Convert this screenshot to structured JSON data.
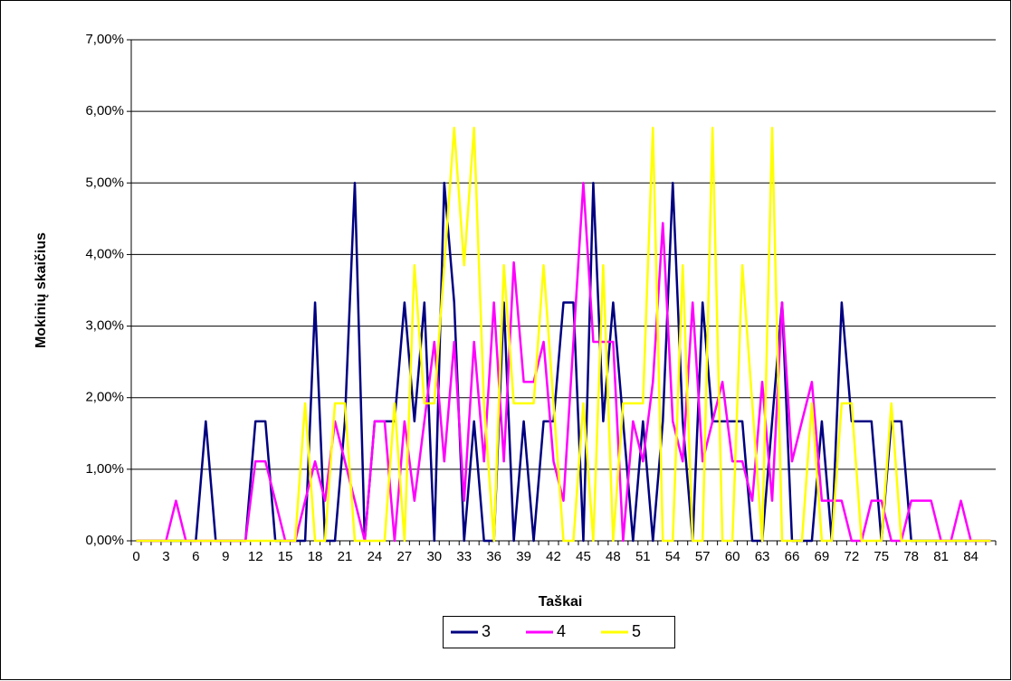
{
  "chart_data": {
    "type": "line",
    "x_label": "Taškai",
    "y_label": "Mokinių skaičius",
    "categories": [
      "0",
      null,
      null,
      "3",
      null,
      null,
      "6",
      null,
      null,
      "9",
      null,
      null,
      "12",
      null,
      null,
      "15",
      null,
      null,
      "18",
      null,
      null,
      "21",
      null,
      null,
      "24",
      null,
      null,
      "27",
      null,
      null,
      "30",
      null,
      null,
      "33",
      null,
      null,
      "36",
      null,
      null,
      "39",
      null,
      null,
      "42",
      null,
      null,
      "45",
      null,
      null,
      "48",
      null,
      null,
      "51",
      null,
      null,
      "54",
      null,
      null,
      "57",
      null,
      null,
      "60",
      null,
      null,
      "63",
      null,
      null,
      "66",
      null,
      null,
      "69",
      null,
      null,
      "72",
      null,
      null,
      "75",
      null,
      null,
      "78",
      null,
      null,
      "81",
      null,
      null,
      "84",
      null,
      null
    ],
    "series": [
      {
        "name": "3",
        "color": "#000080",
        "values": [
          0,
          0,
          0,
          0,
          0,
          0,
          0,
          1.67,
          0,
          0,
          0,
          0,
          1.67,
          1.67,
          0,
          0,
          0,
          0,
          3.33,
          0,
          0,
          1.67,
          5.0,
          0,
          1.67,
          1.67,
          1.67,
          3.33,
          1.67,
          3.33,
          0,
          5.0,
          3.33,
          0,
          1.67,
          0,
          0,
          3.33,
          0,
          1.67,
          0,
          1.67,
          1.67,
          3.33,
          3.33,
          0,
          5.0,
          1.67,
          3.33,
          1.67,
          0,
          1.67,
          0,
          1.67,
          5.0,
          1.67,
          0,
          3.33,
          1.67,
          1.67,
          1.67,
          1.67,
          0,
          0,
          1.67,
          3.33,
          0,
          0,
          0,
          1.67,
          0,
          3.33,
          1.67,
          1.67,
          1.67,
          0,
          1.67,
          1.67,
          0,
          0,
          0,
          0,
          0,
          0,
          0,
          0,
          0
        ]
      },
      {
        "name": "4",
        "color": "#ff00ff",
        "values": [
          0,
          0,
          0,
          0,
          0.56,
          0,
          0,
          0,
          0,
          0,
          0,
          0,
          1.11,
          1.11,
          0.56,
          0,
          0,
          0.56,
          1.11,
          0.56,
          1.67,
          1.11,
          0.56,
          0,
          1.67,
          1.67,
          0,
          1.67,
          0.56,
          1.67,
          2.78,
          1.11,
          2.78,
          0.56,
          2.78,
          1.11,
          3.33,
          1.11,
          3.89,
          2.22,
          2.22,
          2.78,
          1.11,
          0.56,
          2.78,
          5.0,
          2.78,
          2.78,
          2.78,
          0,
          1.67,
          1.11,
          2.22,
          4.44,
          1.67,
          1.11,
          3.33,
          1.11,
          1.67,
          2.22,
          1.11,
          1.11,
          0.56,
          2.22,
          0.56,
          3.33,
          1.11,
          1.67,
          2.22,
          0.56,
          0.56,
          0.56,
          0,
          0,
          0.56,
          0.56,
          0,
          0,
          0.56,
          0.56,
          0.56,
          0,
          0,
          0.56,
          0,
          0,
          0
        ]
      },
      {
        "name": "5",
        "color": "#ffff00",
        "values": [
          0,
          0,
          0,
          0,
          0,
          0,
          0,
          0,
          0,
          0,
          0,
          0,
          0,
          0,
          0,
          0,
          0,
          1.92,
          0,
          0,
          1.92,
          1.92,
          0,
          0,
          0,
          0,
          1.92,
          0,
          3.85,
          1.92,
          1.92,
          3.85,
          5.77,
          3.85,
          5.77,
          1.92,
          0,
          3.85,
          1.92,
          1.92,
          1.92,
          3.85,
          1.92,
          0,
          0,
          1.92,
          0,
          3.85,
          0,
          1.92,
          1.92,
          1.92,
          5.77,
          0,
          0,
          3.85,
          0,
          0,
          5.77,
          0,
          0,
          3.85,
          1.92,
          0,
          5.77,
          0,
          0,
          0,
          1.92,
          0,
          0,
          1.92,
          1.92,
          0,
          0,
          0,
          1.92,
          0,
          0,
          0,
          0,
          0,
          0,
          0,
          0,
          0,
          0
        ]
      }
    ],
    "ylim": [
      0,
      7
    ],
    "yticks": [
      {
        "value": 0,
        "label": "0,00%"
      },
      {
        "value": 1,
        "label": "1,00%"
      },
      {
        "value": 2,
        "label": "2,00%"
      },
      {
        "value": 3,
        "label": "3,00%"
      },
      {
        "value": 4,
        "label": "4,00%"
      },
      {
        "value": 5,
        "label": "5,00%"
      },
      {
        "value": 6,
        "label": "6,00%"
      },
      {
        "value": 7,
        "label": "7,00%"
      }
    ],
    "grid": true,
    "legend": "bottom"
  }
}
